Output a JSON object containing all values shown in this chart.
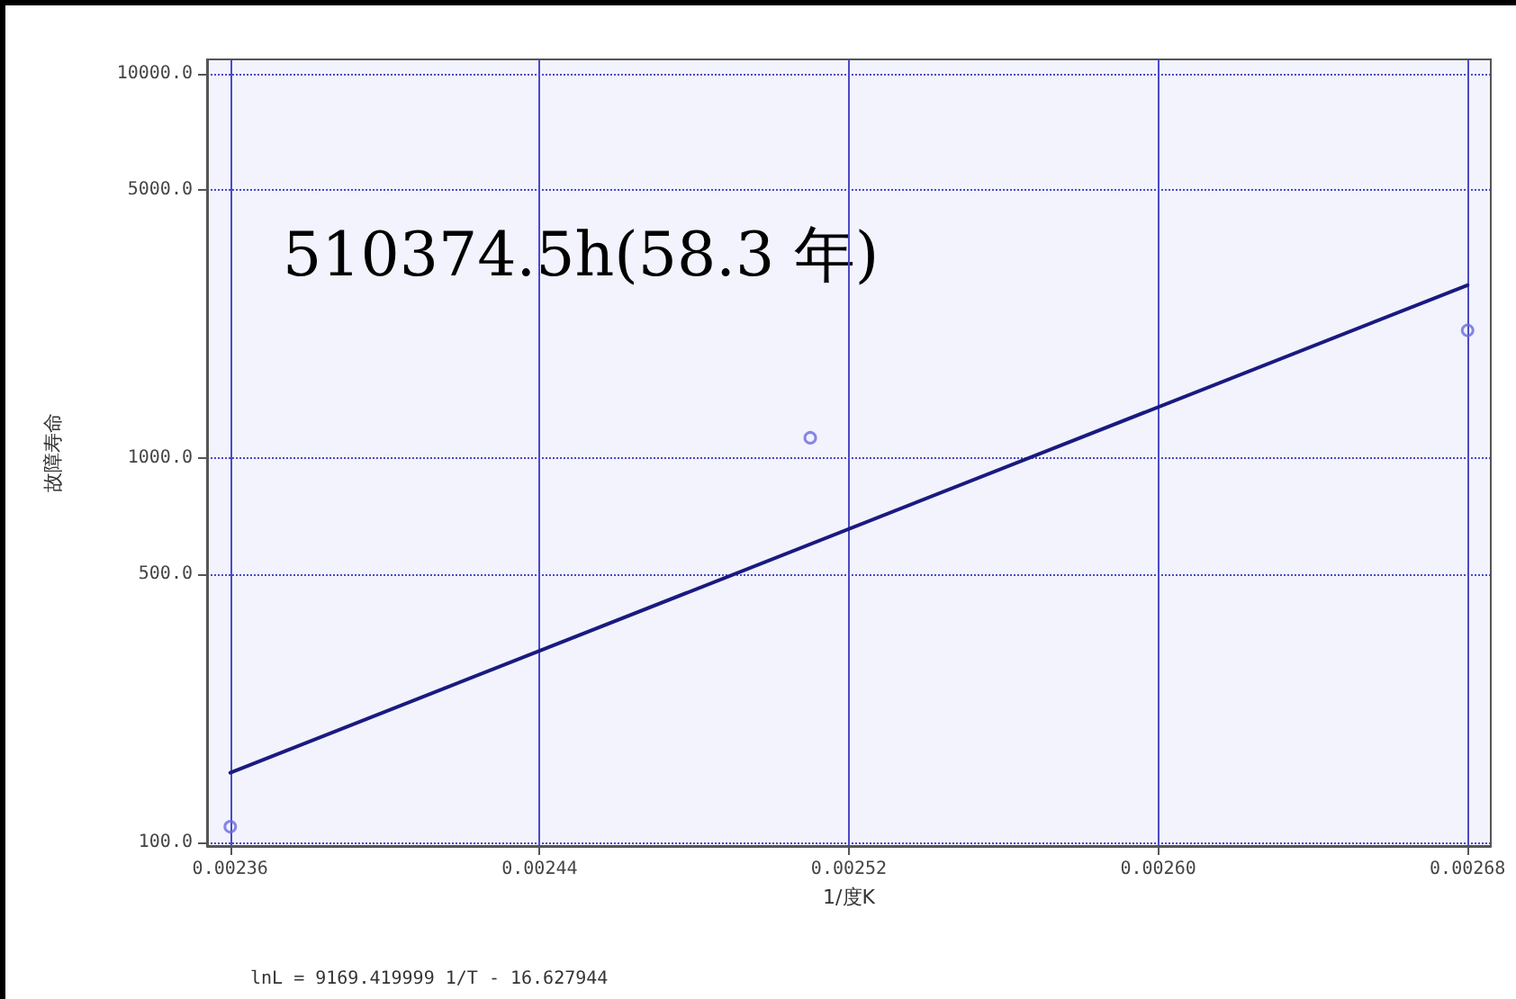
{
  "chart_data": {
    "type": "scatter",
    "xlabel": "1/度K",
    "ylabel": "故障寿命",
    "annotations": [
      "510374.5h(58.3 年)",
      "lnL = 9169.419999 1/T - 16.627944"
    ],
    "xlim": [
      0.002354,
      0.002686
    ],
    "ylim": [
      98,
      10900
    ],
    "log": "y",
    "grid": true,
    "xticks": [
      {
        "value": 0.00236,
        "label": "0.00236"
      },
      {
        "value": 0.00244,
        "label": "0.00244"
      },
      {
        "value": 0.00252,
        "label": "0.00252"
      },
      {
        "value": 0.0026,
        "label": "0.00260"
      },
      {
        "value": 0.00268,
        "label": "0.00268"
      }
    ],
    "yticks": [
      {
        "value": 100,
        "label": "100.0"
      },
      {
        "value": 500,
        "label": "500.0"
      },
      {
        "value": 1000,
        "label": "1000.0"
      },
      {
        "value": 5000,
        "label": "5000.0"
      },
      {
        "value": 10000,
        "label": "10000.0"
      }
    ],
    "series": [
      {
        "color": "#6a6ae0",
        "marker": "circle",
        "x": [
          0.00236,
          0.00251,
          0.00268
        ],
        "values": [
          110,
          1130,
          2150
        ]
      },
      {
        "type": "line",
        "color": "#1a1a80",
        "marker": "none",
        "line_style": "solid",
        "x": [
          0.00236,
          0.00268
        ],
        "values": [
          152,
          2820
        ]
      }
    ]
  }
}
